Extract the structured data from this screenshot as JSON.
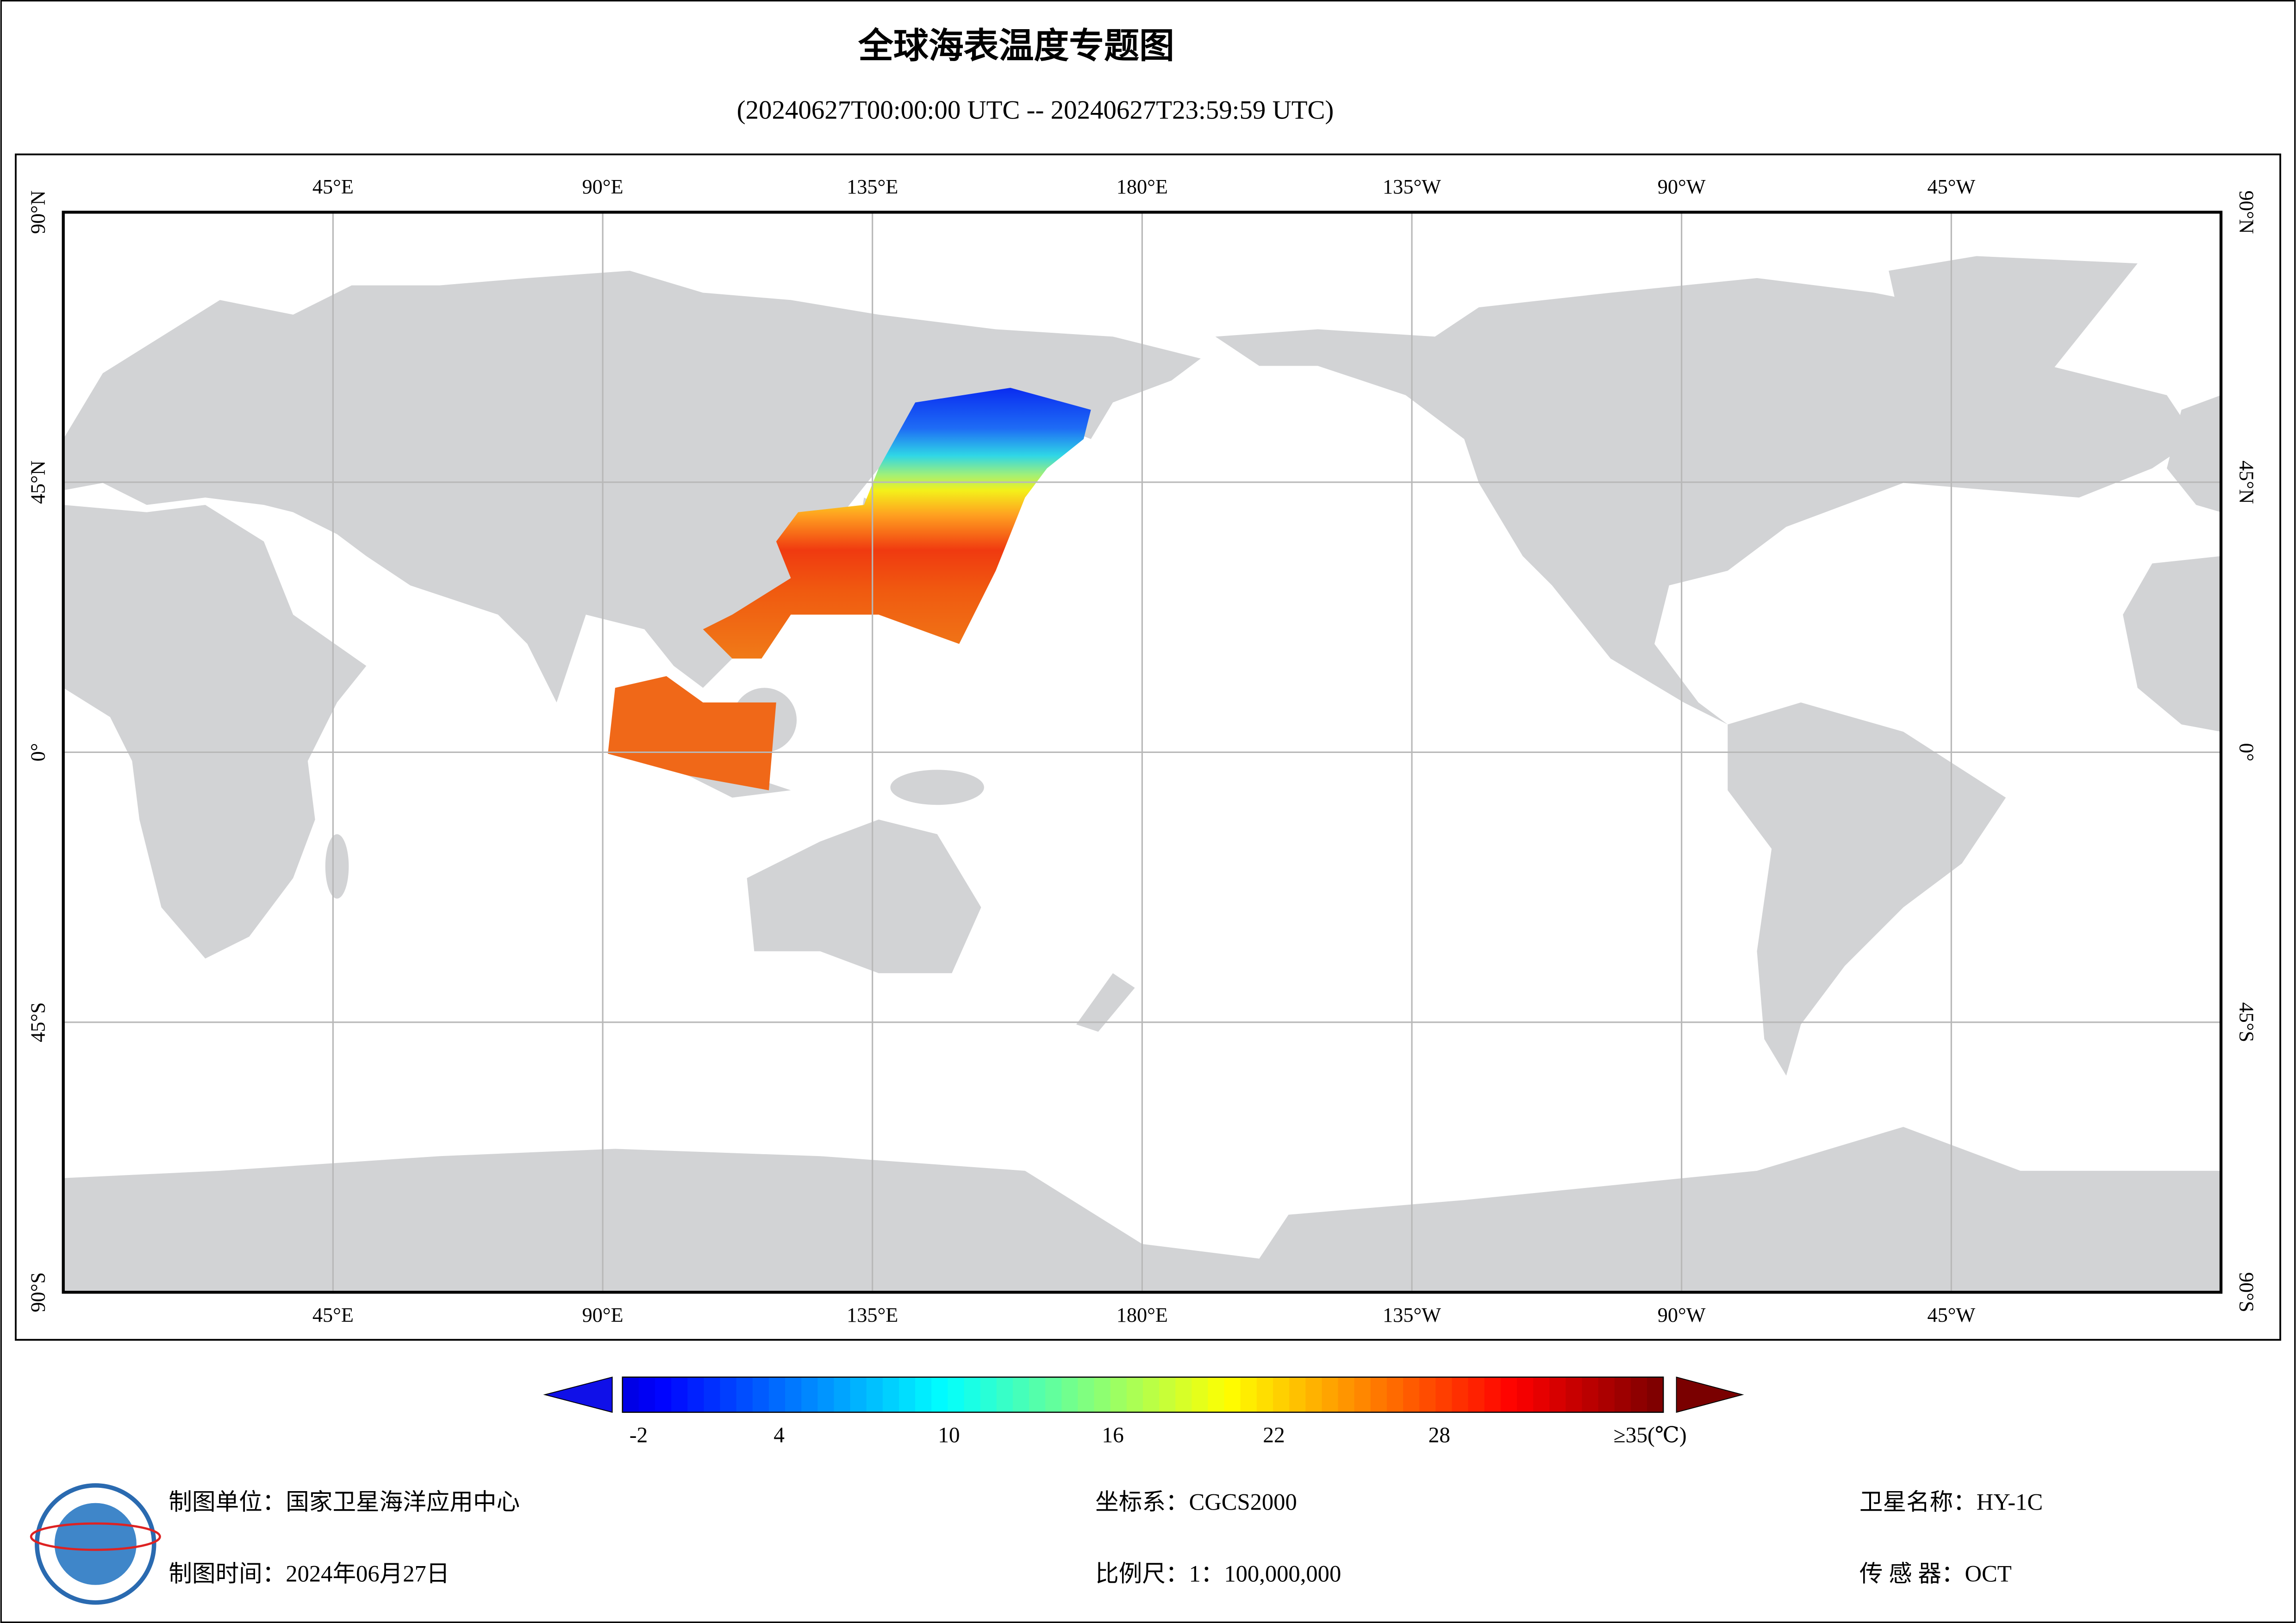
{
  "title": "全球海表温度专题图",
  "subtitle": "(20240627T00:00:00 UTC -- 20240627T23:59:59 UTC)",
  "map": {
    "lon_labels": [
      "45°E",
      "90°E",
      "135°E",
      "180°E",
      "135°W",
      "90°W",
      "45°W"
    ],
    "lat_labels": [
      "90°N",
      "45°N",
      "0°",
      "45°S",
      "90°S"
    ]
  },
  "colorbar": {
    "tick_labels": [
      "-2",
      "4",
      "10",
      "16",
      "22",
      "28",
      "≥35(℃)"
    ]
  },
  "footer": {
    "unit": "制图单位：国家卫星海洋应用中心",
    "date": "制图时间：2024年06月27日",
    "crs": "坐标系：CGCS2000",
    "scale": "比例尺：1：100,000,000",
    "satellite": "卫星名称：HY-1C",
    "sensor": "传 感 器：OCT"
  }
}
